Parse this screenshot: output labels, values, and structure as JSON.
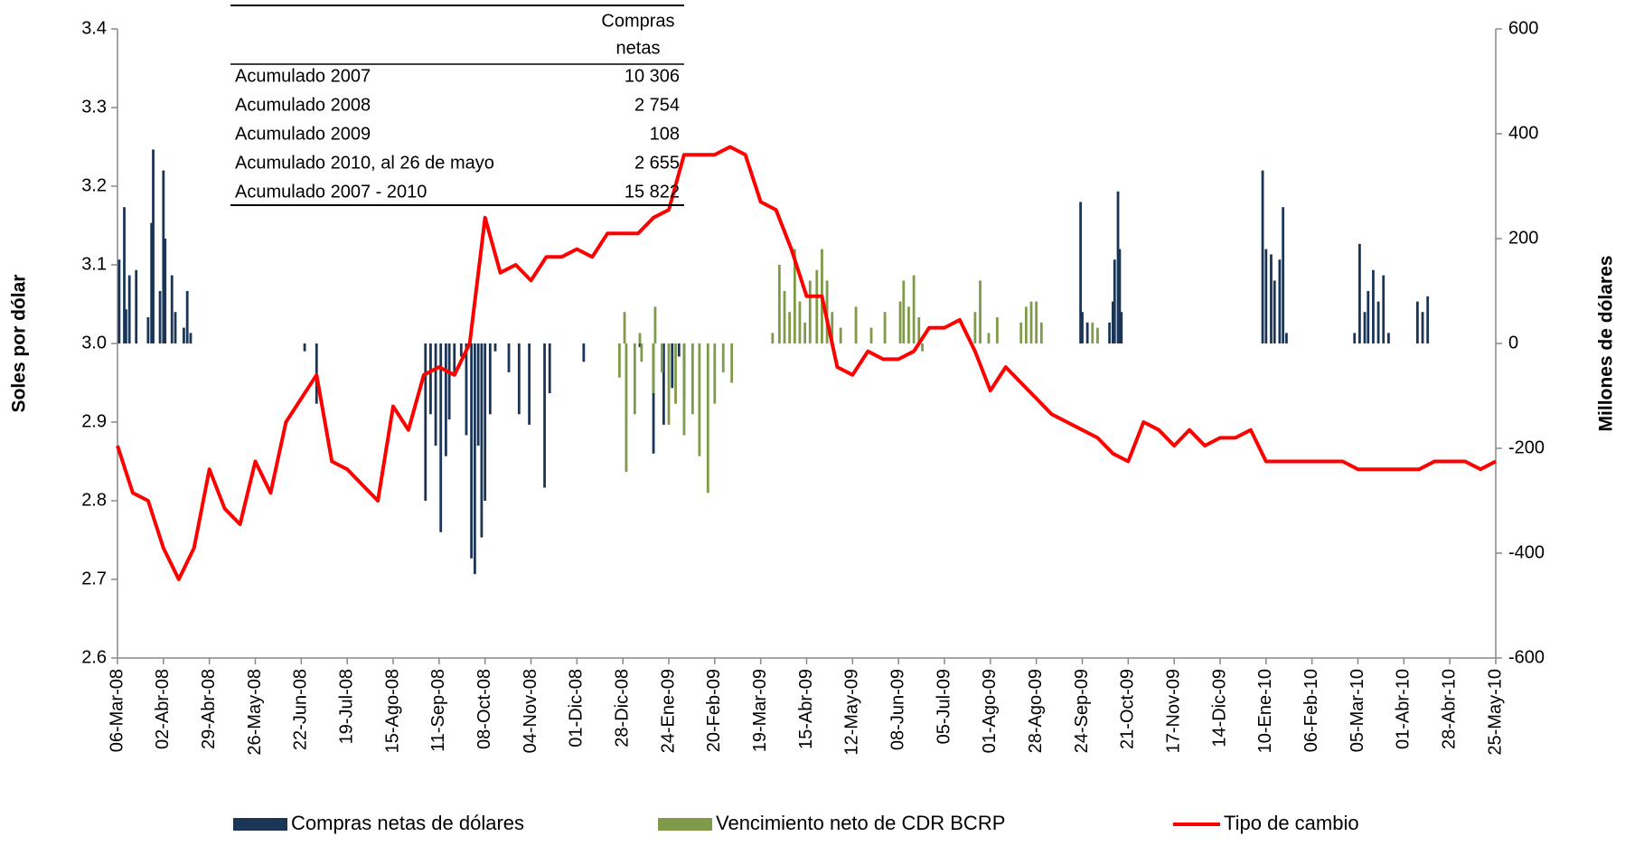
{
  "chart_data": {
    "type": "combo",
    "y_label": "Soles por dólar",
    "y2_label": "Millones de dólares",
    "xlim": [
      "06-Mar-08",
      "25-May-10"
    ],
    "xticks": [
      "06-Mar-08",
      "02-Abr-08",
      "29-Abr-08",
      "26-May-08",
      "22-Jun-08",
      "19-Jul-08",
      "15-Ago-08",
      "11-Sep-08",
      "08-Oct-08",
      "04-Nov-08",
      "01-Dic-08",
      "28-Dic-08",
      "24-Ene-09",
      "20-Feb-09",
      "19-Mar-09",
      "15-Abr-09",
      "12-May-09",
      "08-Jun-09",
      "05-Jul-09",
      "01-Ago-09",
      "28-Ago-09",
      "24-Sep-09",
      "21-Oct-09",
      "17-Nov-09",
      "14-Dic-09",
      "10-Ene-10",
      "06-Feb-10",
      "05-Mar-10",
      "01-Abr-10",
      "28-Abr-10",
      "25-May-10"
    ],
    "ylim": [
      2.6,
      3.4
    ],
    "yticks": [
      2.6,
      2.7,
      2.8,
      2.9,
      {
        "value": 3,
        "label": "3.0"
      },
      3.1,
      3.2,
      3.3,
      3.4
    ],
    "y2lim": [
      -600,
      600
    ],
    "y2ticks": [
      -600,
      -400,
      -200,
      0,
      200,
      400,
      600
    ],
    "series": [
      {
        "name": "Compras netas de dólares",
        "type": "bar",
        "axis": "y2",
        "color": "#1b3556",
        "x": [
          "07-Mar-08",
          "10-Mar-08",
          "11-Mar-08",
          "13-Mar-08",
          "17-Mar-08",
          "24-Mar-08",
          "26-Mar-08",
          "27-Mar-08",
          "31-Mar-08",
          "02-Abr-08",
          "03-Abr-08",
          "07-Abr-08",
          "09-Abr-08",
          "14-Abr-08",
          "16-Abr-08",
          "18-Abr-08",
          "24-Jun-08",
          "01-Jul-08",
          "03-Sep-08",
          "06-Sep-08",
          "09-Sep-08",
          "12-Sep-08",
          "15-Sep-08",
          "17-Sep-08",
          "20-Sep-08",
          "24-Sep-08",
          "27-Sep-08",
          "30-Sep-08",
          "02-Oct-08",
          "04-Oct-08",
          "06-Oct-08",
          "08-Oct-08",
          "11-Oct-08",
          "14-Oct-08",
          "22-Oct-08",
          "28-Oct-08",
          "03-Nov-08",
          "12-Nov-08",
          "15-Nov-08",
          "05-Dic-08",
          "07-Ene-09",
          "15-Ene-09",
          "21-Ene-09",
          "26-Ene-09",
          "30-Ene-09",
          "02-Feb-09",
          "23-Sep-09",
          "24-Sep-09",
          "27-Sep-09",
          "10-Oct-09",
          "12-Oct-09",
          "13-Oct-09",
          "15-Oct-09",
          "16-Oct-09",
          "17-Oct-09",
          "08-Ene-10",
          "10-Ene-10",
          "13-Ene-10",
          "15-Ene-10",
          "18-Ene-10",
          "20-Ene-10",
          "22-Ene-10",
          "03-Mar-10",
          "06-Mar-10",
          "09-Mar-10",
          "11-Mar-10",
          "14-Mar-10",
          "17-Mar-10",
          "20-Mar-10",
          "23-Mar-10",
          "09-Abr-10",
          "12-Abr-10",
          "15-Abr-10"
        ],
        "values": [
          160,
          260,
          65,
          130,
          140,
          50,
          230,
          370,
          100,
          330,
          200,
          130,
          60,
          30,
          100,
          20,
          -15,
          -115,
          -300,
          -135,
          -195,
          -360,
          -215,
          -145,
          -55,
          -25,
          -175,
          -410,
          -440,
          -195,
          -370,
          -300,
          -135,
          -15,
          -55,
          -135,
          -155,
          -275,
          -95,
          -35,
          -7,
          -210,
          -155,
          -85,
          -25,
          -105,
          270,
          60,
          40,
          40,
          80,
          160,
          290,
          180,
          60,
          330,
          180,
          170,
          120,
          160,
          260,
          20,
          20,
          190,
          60,
          100,
          140,
          80,
          130,
          20,
          80,
          60,
          90
        ]
      },
      {
        "name": "Vencimiento neto de CDR BCRP",
        "type": "bar",
        "axis": "y2",
        "color": "#7f9a48",
        "x": [
          "26-Dic-08",
          "29-Dic-08",
          "30-Dic-08",
          "04-Ene-09",
          "07-Ene-09",
          "08-Ene-09",
          "15-Ene-09",
          "16-Ene-09",
          "20-Ene-09",
          "24-Ene-09",
          "28-Ene-09",
          "02-Feb-09",
          "07-Feb-09",
          "11-Feb-09",
          "16-Feb-09",
          "20-Feb-09",
          "25-Feb-09",
          "02-Mar-09",
          "26-Mar-09",
          "30-Mar-09",
          "02-Abr-09",
          "05-Abr-09",
          "08-Abr-09",
          "11-Abr-09",
          "14-Abr-09",
          "17-Abr-09",
          "21-Abr-09",
          "24-Abr-09",
          "27-Abr-09",
          "30-Abr-09",
          "05-May-09",
          "14-May-09",
          "23-May-09",
          "31-May-09",
          "09-Jun-09",
          "11-Jun-09",
          "14-Jun-09",
          "17-Jun-09",
          "20-Jun-09",
          "22-Jun-09",
          "23-Jul-09",
          "26-Jul-09",
          "31-Jul-09",
          "05-Ago-09",
          "19-Ago-09",
          "22-Ago-09",
          "25-Ago-09",
          "28-Ago-09",
          "31-Ago-09",
          "30-Sep-09",
          "03-Oct-09"
        ],
        "values": [
          -65,
          60,
          -245,
          -135,
          20,
          -35,
          -95,
          70,
          -55,
          -155,
          -115,
          -175,
          -135,
          -215,
          -285,
          -115,
          -55,
          -75,
          20,
          150,
          100,
          60,
          180,
          80,
          40,
          120,
          140,
          180,
          120,
          60,
          30,
          70,
          30,
          60,
          80,
          120,
          70,
          130,
          50,
          -15,
          60,
          120,
          20,
          50,
          40,
          70,
          80,
          80,
          40,
          40,
          30
        ]
      },
      {
        "name": "Tipo de cambio",
        "type": "line",
        "axis": "y",
        "color": "#ff0000",
        "x": [
          "06-Mar-08",
          "15-Mar-08",
          "24-Mar-08",
          "02-Abr-08",
          "11-Abr-08",
          "20-Abr-08",
          "29-Abr-08",
          "08-May-08",
          "17-May-08",
          "26-May-08",
          "04-Jun-08",
          "13-Jun-08",
          "22-Jun-08",
          "01-Jul-08",
          "10-Jul-08",
          "19-Jul-08",
          "28-Jul-08",
          "06-Ago-08",
          "15-Ago-08",
          "24-Ago-08",
          "02-Sep-08",
          "11-Sep-08",
          "20-Sep-08",
          "29-Sep-08",
          "08-Oct-08",
          "17-Oct-08",
          "26-Oct-08",
          "04-Nov-08",
          "13-Nov-08",
          "22-Nov-08",
          "01-Dic-08",
          "10-Dic-08",
          "19-Dic-08",
          "28-Dic-08",
          "06-Ene-09",
          "15-Ene-09",
          "24-Ene-09",
          "02-Feb-09",
          "11-Feb-09",
          "20-Feb-09",
          "01-Mar-09",
          "10-Mar-09",
          "19-Mar-09",
          "28-Mar-09",
          "06-Abr-09",
          "15-Abr-09",
          "24-Abr-09",
          "03-May-09",
          "12-May-09",
          "21-May-09",
          "30-May-09",
          "08-Jun-09",
          "17-Jun-09",
          "26-Jun-09",
          "05-Jul-09",
          "14-Jul-09",
          "23-Jul-09",
          "01-Ago-09",
          "10-Ago-09",
          "19-Ago-09",
          "28-Ago-09",
          "06-Sep-09",
          "15-Sep-09",
          "24-Sep-09",
          "03-Oct-09",
          "12-Oct-09",
          "21-Oct-09",
          "30-Oct-09",
          "08-Nov-09",
          "17-Nov-09",
          "26-Nov-09",
          "05-Dic-09",
          "14-Dic-09",
          "23-Dic-09",
          "01-Ene-10",
          "10-Ene-10",
          "19-Ene-10",
          "28-Ene-10",
          "06-Feb-10",
          "15-Feb-10",
          "24-Feb-10",
          "05-Mar-10",
          "14-Mar-10",
          "23-Mar-10",
          "01-Abr-10",
          "10-Abr-10",
          "19-Abr-10",
          "28-Abr-10",
          "07-May-10",
          "16-May-10",
          "25-May-10"
        ],
        "values": [
          2.87,
          2.81,
          2.8,
          2.74,
          2.7,
          2.74,
          2.84,
          2.79,
          2.77,
          2.85,
          2.81,
          2.9,
          2.93,
          2.96,
          2.85,
          2.84,
          2.82,
          2.8,
          2.92,
          2.89,
          2.96,
          2.97,
          2.96,
          3.0,
          3.16,
          3.09,
          3.1,
          3.08,
          3.11,
          3.11,
          3.12,
          3.11,
          3.14,
          3.14,
          3.14,
          3.16,
          3.17,
          3.24,
          3.24,
          3.24,
          3.25,
          3.24,
          3.18,
          3.17,
          3.12,
          3.06,
          3.06,
          2.97,
          2.96,
          2.99,
          2.98,
          2.98,
          2.99,
          3.02,
          3.02,
          3.03,
          2.99,
          2.94,
          2.97,
          2.95,
          2.93,
          2.91,
          2.9,
          2.89,
          2.88,
          2.86,
          2.85,
          2.9,
          2.89,
          2.87,
          2.89,
          2.87,
          2.88,
          2.88,
          2.89,
          2.85,
          2.85,
          2.85,
          2.85,
          2.85,
          2.85,
          2.84,
          2.84,
          2.84,
          2.84,
          2.84,
          2.85,
          2.85,
          2.85,
          2.84,
          2.85
        ]
      }
    ],
    "table": {
      "header": [
        "Compras",
        "netas"
      ],
      "rows": [
        [
          "Acumulado 2007",
          "10 306"
        ],
        [
          "Acumulado 2008",
          "2 754"
        ],
        [
          "Acumulado 2009",
          "108"
        ],
        [
          "Acumulado 2010, al 26 de mayo",
          "2 655"
        ],
        [
          "Acumulado 2007 - 2010",
          "15 822"
        ]
      ]
    }
  }
}
